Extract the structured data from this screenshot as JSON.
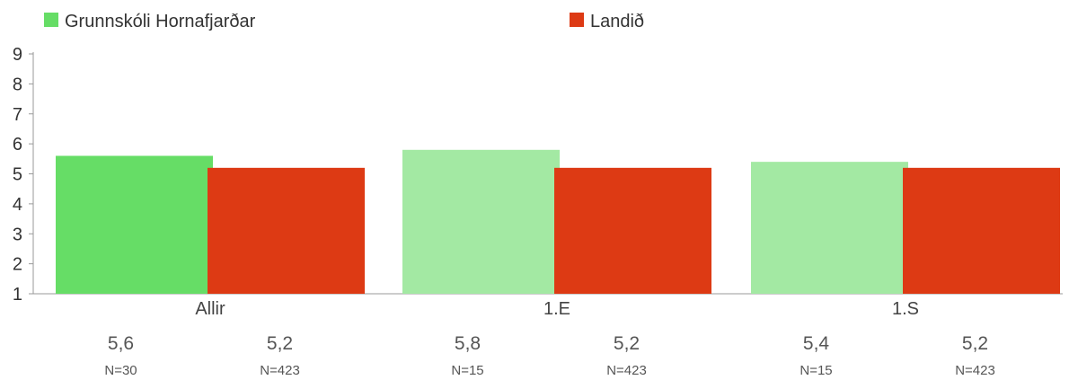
{
  "chart_data": {
    "type": "bar",
    "categories": [
      "Allir",
      "1.E",
      "1.S"
    ],
    "series": [
      {
        "name": "Grunnskóli Hornafjarðar",
        "color": "#66dd66",
        "color_light": "#a3e9a3",
        "values": [
          5.6,
          5.8,
          5.4
        ],
        "value_labels": [
          "5,6",
          "5,8",
          "5,4"
        ],
        "n_labels": [
          "N=30",
          "N=15",
          "N=15"
        ]
      },
      {
        "name": "Landið",
        "color": "#dd3a14",
        "values": [
          5.2,
          5.2,
          5.2
        ],
        "value_labels": [
          "5,2",
          "5,2",
          "5,2"
        ],
        "n_labels": [
          "N=423",
          "N=423",
          "N=423"
        ]
      }
    ],
    "ylim": [
      1,
      9
    ],
    "yticks": [
      "1",
      "2",
      "3",
      "4",
      "5",
      "6",
      "7",
      "8",
      "9"
    ],
    "legend_position": "top",
    "grid": false
  }
}
